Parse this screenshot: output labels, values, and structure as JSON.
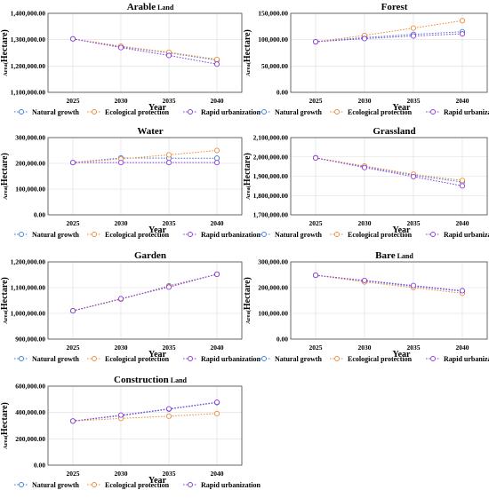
{
  "legend_labels": [
    "Natural growth",
    "Ecological protection",
    "Rapid urbanization"
  ],
  "colors": {
    "natural": "#3f7fd6",
    "ecological": "#f08a3a",
    "urban": "#8a3ce0",
    "grid": "#dddddd"
  },
  "chart_data": [
    {
      "type": "line",
      "title": "Arable",
      "title_suffix": "Land",
      "xlabel": "Year",
      "ylabel_prefix": "Area(",
      "ylabel": "Hectare)",
      "x": [
        2025,
        2030,
        2035,
        2040
      ],
      "ylim": [
        1100000,
        1400000
      ],
      "yticks": [
        1100000,
        1200000,
        1300000,
        1400000
      ],
      "ytick_labels": [
        "1,100,000.00",
        "1,200,000.00",
        "1,300,000.00",
        "1,400,000.00"
      ],
      "series": [
        {
          "name": "Natural growth",
          "values": [
            1303000,
            1273000,
            1250000,
            1222000
          ]
        },
        {
          "name": "Ecological protection",
          "values": [
            1303000,
            1275000,
            1252000,
            1225000
          ]
        },
        {
          "name": "Rapid urbanization",
          "values": [
            1303000,
            1270000,
            1240000,
            1207000
          ]
        }
      ]
    },
    {
      "type": "line",
      "title": "Forest",
      "title_suffix": "",
      "xlabel": "Year",
      "ylabel_prefix": "Area(",
      "ylabel": "Hectare)",
      "x": [
        2025,
        2030,
        2035,
        2040
      ],
      "ylim": [
        0,
        150000
      ],
      "yticks": [
        0,
        50000,
        100000,
        150000
      ],
      "ytick_labels": [
        "0.00",
        "50,000.00",
        "100,000.00",
        "150,000.00"
      ],
      "series": [
        {
          "name": "Natural growth",
          "values": [
            96000,
            104000,
            110000,
            115000
          ]
        },
        {
          "name": "Ecological protection",
          "values": [
            96000,
            108000,
            122000,
            136000
          ]
        },
        {
          "name": "Rapid urbanization",
          "values": [
            96000,
            102000,
            107000,
            111000
          ]
        }
      ]
    },
    {
      "type": "line",
      "title": "Water",
      "title_suffix": "",
      "xlabel": "Year",
      "ylabel_prefix": "Area(",
      "ylabel": "Hectare)",
      "x": [
        2025,
        2030,
        2035,
        2040
      ],
      "ylim": [
        0,
        300000
      ],
      "yticks": [
        0,
        100000,
        200000,
        300000
      ],
      "ytick_labels": [
        "0.00",
        "100,000.00",
        "200,000.00",
        "300,000.00"
      ],
      "series": [
        {
          "name": "Natural growth",
          "values": [
            203000,
            221000,
            220000,
            220000
          ]
        },
        {
          "name": "Ecological protection",
          "values": [
            203000,
            217000,
            233000,
            250000
          ]
        },
        {
          "name": "Rapid urbanization",
          "values": [
            203000,
            203000,
            203000,
            203000
          ]
        }
      ]
    },
    {
      "type": "line",
      "title": "Grassland",
      "title_suffix": "",
      "xlabel": "Year",
      "ylabel_prefix": "Area(",
      "ylabel": "Hectare)",
      "x": [
        2025,
        2030,
        2035,
        2040
      ],
      "ylim": [
        1700000,
        2100000
      ],
      "yticks": [
        1700000,
        1800000,
        1900000,
        2000000,
        2100000
      ],
      "ytick_labels": [
        "1,700,000.00",
        "1,800,000.00",
        "1,900,000.00",
        "2,000,000.00",
        "2,100,000.00"
      ],
      "series": [
        {
          "name": "Natural growth",
          "values": [
            1995000,
            1950000,
            1905000,
            1870000
          ]
        },
        {
          "name": "Ecological protection",
          "values": [
            1995000,
            1953000,
            1910000,
            1878000
          ]
        },
        {
          "name": "Rapid urbanization",
          "values": [
            1995000,
            1945000,
            1898000,
            1850000
          ]
        }
      ]
    },
    {
      "type": "line",
      "title": "Garden",
      "title_suffix": "",
      "xlabel": "Year",
      "ylabel_prefix": "Area(",
      "ylabel": "Hectare)",
      "x": [
        2025,
        2030,
        2035,
        2040
      ],
      "ylim": [
        900000,
        1200000
      ],
      "yticks": [
        900000,
        1000000,
        1100000,
        1200000
      ],
      "ytick_labels": [
        "900,000.00",
        "1,000,000.00",
        "1,100,000.00",
        "1,200,000.00"
      ],
      "series": [
        {
          "name": "Natural growth",
          "values": [
            1010000,
            1055000,
            1107000,
            1152000
          ]
        },
        {
          "name": "Ecological protection",
          "values": [
            1010000,
            1055000,
            1105000,
            1152000
          ]
        },
        {
          "name": "Rapid urbanization",
          "values": [
            1010000,
            1057000,
            1102000,
            1152000
          ]
        }
      ]
    },
    {
      "type": "line",
      "title": "Bare",
      "title_suffix": "Land",
      "xlabel": "Year",
      "ylabel_prefix": "Area(",
      "ylabel": "Hectare)",
      "x": [
        2025,
        2030,
        2035,
        2040
      ],
      "ylim": [
        0,
        300000
      ],
      "yticks": [
        0,
        100000,
        200000,
        300000
      ],
      "ytick_labels": [
        "0.00",
        "100,000.00",
        "200,000.00",
        "300,000.00"
      ],
      "series": [
        {
          "name": "Natural growth",
          "values": [
            248000,
            226000,
            205000,
            186000
          ]
        },
        {
          "name": "Ecological protection",
          "values": [
            248000,
            222000,
            200000,
            178000
          ]
        },
        {
          "name": "Rapid urbanization",
          "values": [
            248000,
            228000,
            208000,
            188000
          ]
        }
      ]
    },
    {
      "type": "line",
      "title": "Construction",
      "title_suffix": "Land",
      "xlabel": "Year",
      "ylabel_prefix": "Area(",
      "ylabel": "Hectare)",
      "x": [
        2025,
        2030,
        2035,
        2040
      ],
      "ylim": [
        0,
        600000
      ],
      "yticks": [
        0,
        200000,
        400000,
        600000
      ],
      "ytick_labels": [
        "0.00",
        "200,000.00",
        "400,000.00",
        "600,000.00"
      ],
      "series": [
        {
          "name": "Natural growth",
          "values": [
            335000,
            375000,
            425000,
            475000
          ]
        },
        {
          "name": "Ecological protection",
          "values": [
            335000,
            355000,
            372000,
            392000
          ]
        },
        {
          "name": "Rapid urbanization",
          "values": [
            335000,
            380000,
            428000,
            478000
          ]
        }
      ]
    }
  ]
}
